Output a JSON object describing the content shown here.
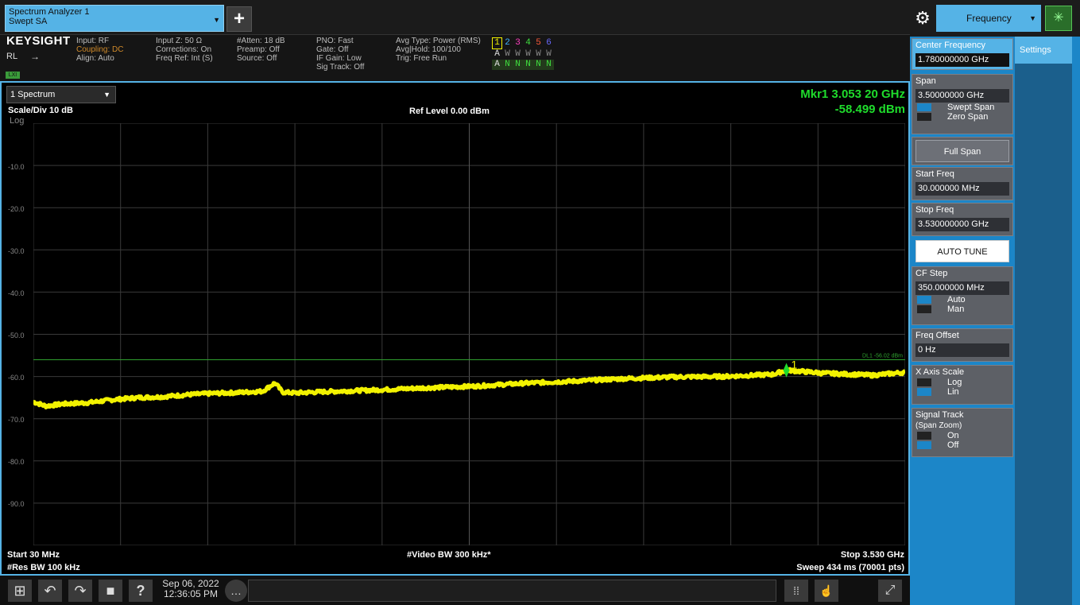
{
  "tab": {
    "line1": "Spectrum Analyzer 1",
    "line2": "Swept SA"
  },
  "add_label": "+",
  "info": {
    "brand": "KEYSIGHT",
    "input": "Input: RF",
    "coupling": "Coupling: DC",
    "align": "Align: Auto",
    "rl": "RL",
    "lxi": "LXI",
    "input_z": "Input Z: 50 Ω",
    "corrections": "Corrections: On",
    "freq_ref": "Freq Ref: Int (S)",
    "atten": "#Atten: 18 dB",
    "preamp": "Preamp: Off",
    "source": "Source: Off",
    "pno": "PNO: Fast",
    "gate": "Gate: Off",
    "if_gain": "IF Gain: Low",
    "sig_track": "Sig Track: Off",
    "avg_type": "Avg Type: Power (RMS)",
    "avg_hold": "Avg|Hold: 100/100",
    "trig": "Trig: Free Run",
    "trace_nums": [
      "1",
      "2",
      "3",
      "4",
      "5",
      "6"
    ],
    "trace_types": [
      "A",
      "W",
      "W",
      "W",
      "W",
      "W"
    ],
    "trace_det": [
      "A",
      "N",
      "N",
      "N",
      "N",
      "N"
    ]
  },
  "plot": {
    "selector": "1 Spectrum",
    "scale": "Scale/Div 10 dB",
    "log": "Log",
    "ref_level": "Ref Level 0.00 dBm",
    "marker_freq": "Mkr1  3.053 20 GHz",
    "marker_amp": "-58.499 dBm",
    "y_labels": [
      "-10.0",
      "-20.0",
      "-30.0",
      "-40.0",
      "-50.0",
      "-60.0",
      "-70.0",
      "-80.0",
      "-90.0"
    ],
    "display_line": "DL1 -56.02 dBm",
    "marker_label": "1",
    "start": "Start 30 MHz",
    "res_bw": "#Res BW 100 kHz",
    "video_bw": "#Video BW 300 kHz*",
    "stop": "Stop 3.530 GHz",
    "sweep": "Sweep 434 ms (70001 pts)"
  },
  "chart_data": {
    "type": "line",
    "ylim": [
      -100,
      0
    ],
    "xlim": [
      0.03,
      3.53
    ],
    "display_line_dbm": -56.02,
    "marker": {
      "x": 3.0532,
      "y": -58.499
    },
    "series": [
      {
        "x": [
          0.03,
          0.08,
          0.15,
          0.25,
          0.35,
          0.45,
          0.55,
          0.65,
          0.75,
          0.85,
          0.95,
          1.0,
          1.03,
          1.08,
          1.2,
          1.4,
          1.6,
          1.8,
          2.0,
          2.2,
          2.4,
          2.6,
          2.8,
          3.0,
          3.053,
          3.2,
          3.4,
          3.53
        ],
        "y": [
          -66,
          -67,
          -66.5,
          -66.2,
          -65.5,
          -65,
          -64.8,
          -64.3,
          -64,
          -63.8,
          -63.5,
          -61.5,
          -63.7,
          -63.9,
          -63.6,
          -63.2,
          -62.7,
          -62.3,
          -61.6,
          -61.1,
          -60.5,
          -60.1,
          -60,
          -59.5,
          -58.5,
          -59.2,
          -59.7,
          -59
        ]
      }
    ],
    "grid": true
  },
  "taskbar": {
    "date": "Sep 06, 2022",
    "time": "12:36:05 PM"
  },
  "panel": {
    "menu": "Frequency",
    "settings_tab": "Settings",
    "center_label": "Center Frequency",
    "center_val": "1.780000000 GHz",
    "span_label": "Span",
    "span_val": "3.50000000 GHz",
    "swept_span": "Swept Span",
    "zero_span": "Zero Span",
    "full_span": "Full Span",
    "start_label": "Start Freq",
    "start_val": "30.000000 MHz",
    "stop_label": "Stop Freq",
    "stop_val": "3.530000000 GHz",
    "auto_tune": "AUTO TUNE",
    "cf_step_label": "CF Step",
    "cf_step_val": "350.000000 MHz",
    "auto": "Auto",
    "man": "Man",
    "offset_label": "Freq Offset",
    "offset_val": "0 Hz",
    "xscale_label": "X Axis Scale",
    "log": "Log",
    "lin": "Lin",
    "sigtrack_label": "Signal Track",
    "sigtrack_sub": "(Span Zoom)",
    "on": "On",
    "off": "Off"
  },
  "colors": {
    "accent": "#55b3e6",
    "trace": "#f2f200",
    "marker": "#1fdc2c",
    "panel": "#1c86c8"
  }
}
